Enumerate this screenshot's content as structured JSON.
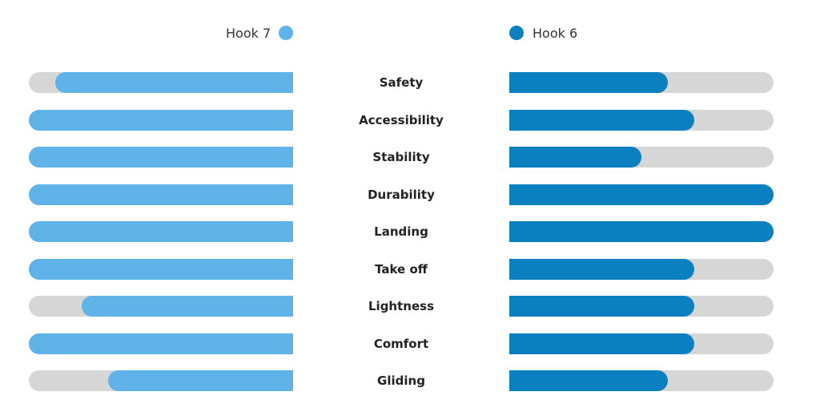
{
  "chart_data": {
    "type": "bar",
    "categories": [
      "Safety",
      "Accessibility",
      "Stability",
      "Durability",
      "Landing",
      "Take off",
      "Lightness",
      "Comfort",
      "Gliding"
    ],
    "series": [
      {
        "name": "Hook 7",
        "color": "#5fb3e8",
        "values": [
          0.9,
          1.0,
          1.0,
          1.0,
          1.0,
          1.0,
          0.8,
          1.0,
          0.7
        ]
      },
      {
        "name": "Hook 6",
        "color": "#0a80c0",
        "values": [
          0.6,
          0.7,
          0.5,
          1.0,
          1.0,
          0.7,
          0.7,
          0.7,
          0.6
        ]
      }
    ],
    "xlim": [
      0,
      1
    ],
    "legend_position": "top",
    "track_color": "#d6d6d6"
  }
}
